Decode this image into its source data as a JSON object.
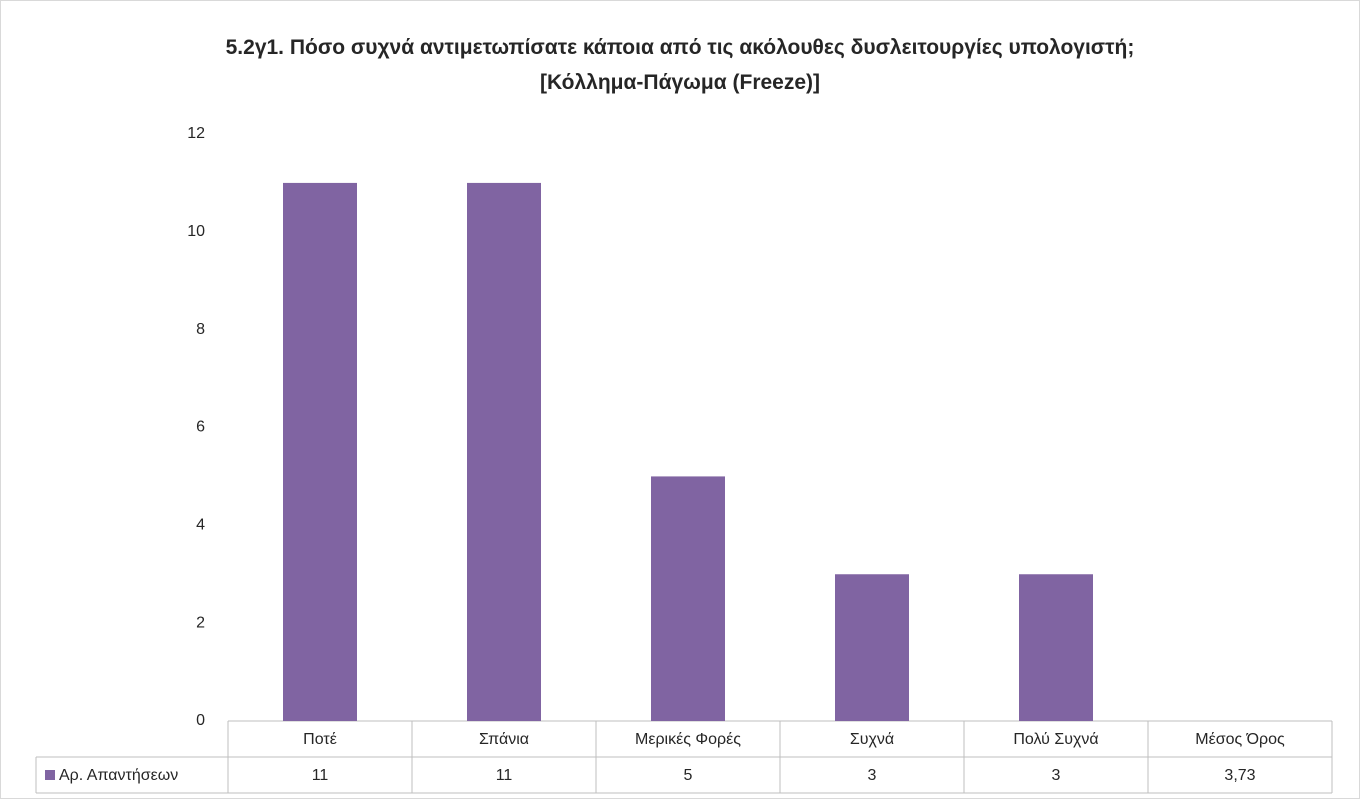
{
  "chart_data": {
    "type": "bar",
    "title": "5.2γ1. Πόσο συχνά αντιμετωπίσατε κάποια από τις ακόλουθες δυσλειτουργίες υπολογιστή; [Κόλλημα-Πάγωμα (Freeze)]",
    "categories": [
      "Ποτέ",
      "Σπάνια",
      "Μερικές Φορές",
      "Συχνά",
      "Πολύ Συχνά",
      "Μέσος Όρος"
    ],
    "series": [
      {
        "name": "Αρ. Απαντήσεων",
        "color": "#8064a2",
        "values": [
          11,
          11,
          5,
          3,
          3,
          null
        ]
      }
    ],
    "data_table": [
      "11",
      "11",
      "5",
      "3",
      "3",
      "3,73"
    ],
    "ylim": [
      0,
      12
    ],
    "yticks": [
      0,
      2,
      4,
      6,
      8,
      10,
      12
    ],
    "grid": false
  }
}
